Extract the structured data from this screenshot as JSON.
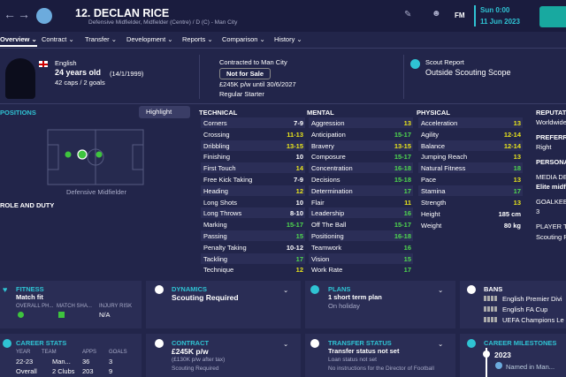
{
  "header": {
    "title": "12. DECLAN RICE",
    "subtitle": "Defensive Midfielder, Midfielder (Centre) / D (C) - Man City",
    "time": "Sun 0:00",
    "date": "11 Jun 2023",
    "logo": "FM"
  },
  "tabs": [
    "Overview",
    "Contract",
    "Transfer",
    "Development",
    "Reports",
    "Comparison",
    "History"
  ],
  "profile": {
    "nationality": "English",
    "age": "24 years old",
    "dob": "(14/1/1999)",
    "caps": "42 caps / 2 goals"
  },
  "contract": {
    "club": "Contracted to Man City",
    "status": "Not for Sale",
    "wage": "£245K p/w until 30/6/2027",
    "role": "Regular Starter"
  },
  "scout": {
    "label": "Scout Report",
    "value": "Outside Scouting Scope"
  },
  "positions": {
    "title": "POSITIONS",
    "button": "Highlight",
    "position": "Defensive Midfielder",
    "role_title": "ROLE AND DUTY"
  },
  "attributes": [
    {
      "title": "TECHNICAL",
      "items": [
        [
          "Corners",
          "7-9"
        ],
        [
          "Crossing",
          "11-13"
        ],
        [
          "Dribbling",
          "13-15"
        ],
        [
          "Finishing",
          "10"
        ],
        [
          "First Touch",
          "14"
        ],
        [
          "Free Kick Taking",
          "7-9"
        ],
        [
          "Heading",
          "12"
        ],
        [
          "Long Shots",
          "10"
        ],
        [
          "Long Throws",
          "8-10"
        ],
        [
          "Marking",
          "15-17"
        ],
        [
          "Passing",
          "15"
        ],
        [
          "Penalty Taking",
          "10-12"
        ],
        [
          "Tackling",
          "17"
        ],
        [
          "Technique",
          "12"
        ]
      ]
    },
    {
      "title": "MENTAL",
      "items": [
        [
          "Aggression",
          "13"
        ],
        [
          "Anticipation",
          "15-17"
        ],
        [
          "Bravery",
          "13-15"
        ],
        [
          "Composure",
          "15-17"
        ],
        [
          "Concentration",
          "16-18"
        ],
        [
          "Decisions",
          "15-18"
        ],
        [
          "Determination",
          "17"
        ],
        [
          "Flair",
          "11"
        ],
        [
          "Leadership",
          "16"
        ],
        [
          "Off The Ball",
          "15-17"
        ],
        [
          "Positioning",
          "16-18"
        ],
        [
          "Teamwork",
          "16"
        ],
        [
          "Vision",
          "15"
        ],
        [
          "Work Rate",
          "17"
        ]
      ]
    },
    {
      "title": "PHYSICAL",
      "items": [
        [
          "Acceleration",
          "13"
        ],
        [
          "Agility",
          "12-14"
        ],
        [
          "Balance",
          "12-14"
        ],
        [
          "Jumping Reach",
          "13"
        ],
        [
          "Natural Fitness",
          "18"
        ],
        [
          "Pace",
          "13"
        ],
        [
          "Stamina",
          "17"
        ],
        [
          "Strength",
          "13"
        ]
      ],
      "extra": [
        [
          "Height",
          "185 cm"
        ],
        [
          "Weight",
          "80 kg"
        ]
      ]
    }
  ],
  "side": [
    "REPUTATI",
    "Worldwide",
    "PREFERRE",
    "Right",
    "PERSONAL",
    "MEDIA DE",
    "Elite midf",
    "GOALKEE",
    "3",
    "PLAYER T",
    "Scouting R"
  ],
  "fitness": {
    "title": "FITNESS",
    "value": "Match fit",
    "labels": [
      "OVERALL PH...",
      "MATCH SHA...",
      "INJURY RISK"
    ],
    "injury": "N/A"
  },
  "dynamics": {
    "title": "DYNAMICS",
    "value": "Scouting Required"
  },
  "plans": {
    "title": "PLANS",
    "value": "1 short term plan",
    "note": "On holiday"
  },
  "bans": {
    "title": "BANS",
    "items": [
      "English Premier Divi",
      "English FA Cup",
      "UEFA Champions Le"
    ]
  },
  "career_stats": {
    "title": "CAREER STATS",
    "headers": [
      "YEAR",
      "TEAM",
      "APPS",
      "GOALS"
    ],
    "rows": [
      [
        "22-23",
        "Man...",
        "36",
        "3"
      ],
      [
        "Overall",
        "2 Clubs",
        "203",
        "9"
      ]
    ]
  },
  "contract_panel": {
    "title": "CONTRACT",
    "value": "£245K p/w",
    "note": "(£130K p/w after tax)",
    "extra": "Scouting Required"
  },
  "transfer_status": {
    "title": "TRANSFER STATUS",
    "value": "Transfer status not set",
    "loan": "Loan status not set",
    "note": "No instructions for the Director of Football"
  },
  "milestones": {
    "title": "CAREER MILESTONES",
    "year": "2023",
    "item": "Named in Man..."
  }
}
